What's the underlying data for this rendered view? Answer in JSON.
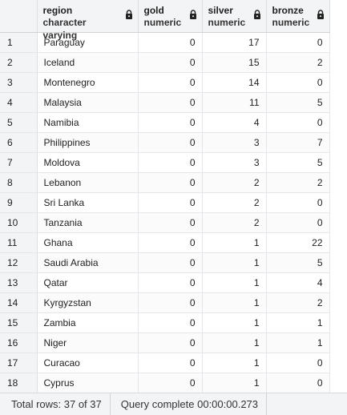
{
  "columns": [
    {
      "name": "region",
      "type": "character varying"
    },
    {
      "name": "gold",
      "type": "numeric"
    },
    {
      "name": "silver",
      "type": "numeric"
    },
    {
      "name": "bronze",
      "type": "numeric"
    }
  ],
  "rows": [
    {
      "n": "1",
      "region": "Paraguay",
      "gold": "0",
      "silver": "17",
      "bronze": "0"
    },
    {
      "n": "2",
      "region": "Iceland",
      "gold": "0",
      "silver": "15",
      "bronze": "2"
    },
    {
      "n": "3",
      "region": "Montenegro",
      "gold": "0",
      "silver": "14",
      "bronze": "0"
    },
    {
      "n": "4",
      "region": "Malaysia",
      "gold": "0",
      "silver": "11",
      "bronze": "5"
    },
    {
      "n": "5",
      "region": "Namibia",
      "gold": "0",
      "silver": "4",
      "bronze": "0"
    },
    {
      "n": "6",
      "region": "Philippines",
      "gold": "0",
      "silver": "3",
      "bronze": "7"
    },
    {
      "n": "7",
      "region": "Moldova",
      "gold": "0",
      "silver": "3",
      "bronze": "5"
    },
    {
      "n": "8",
      "region": "Lebanon",
      "gold": "0",
      "silver": "2",
      "bronze": "2"
    },
    {
      "n": "9",
      "region": "Sri Lanka",
      "gold": "0",
      "silver": "2",
      "bronze": "0"
    },
    {
      "n": "10",
      "region": "Tanzania",
      "gold": "0",
      "silver": "2",
      "bronze": "0"
    },
    {
      "n": "11",
      "region": "Ghana",
      "gold": "0",
      "silver": "1",
      "bronze": "22"
    },
    {
      "n": "12",
      "region": "Saudi Arabia",
      "gold": "0",
      "silver": "1",
      "bronze": "5"
    },
    {
      "n": "13",
      "region": "Qatar",
      "gold": "0",
      "silver": "1",
      "bronze": "4"
    },
    {
      "n": "14",
      "region": "Kyrgyzstan",
      "gold": "0",
      "silver": "1",
      "bronze": "2"
    },
    {
      "n": "15",
      "region": "Zambia",
      "gold": "0",
      "silver": "1",
      "bronze": "1"
    },
    {
      "n": "16",
      "region": "Niger",
      "gold": "0",
      "silver": "1",
      "bronze": "1"
    },
    {
      "n": "17",
      "region": "Curacao",
      "gold": "0",
      "silver": "1",
      "bronze": "0"
    },
    {
      "n": "18",
      "region": "Cyprus",
      "gold": "0",
      "silver": "1",
      "bronze": "0"
    }
  ],
  "status": {
    "total_rows": "Total rows: 37 of 37",
    "query": "Query complete 00:00:00.273"
  },
  "icons": {
    "column_lock": "lock-icon"
  }
}
